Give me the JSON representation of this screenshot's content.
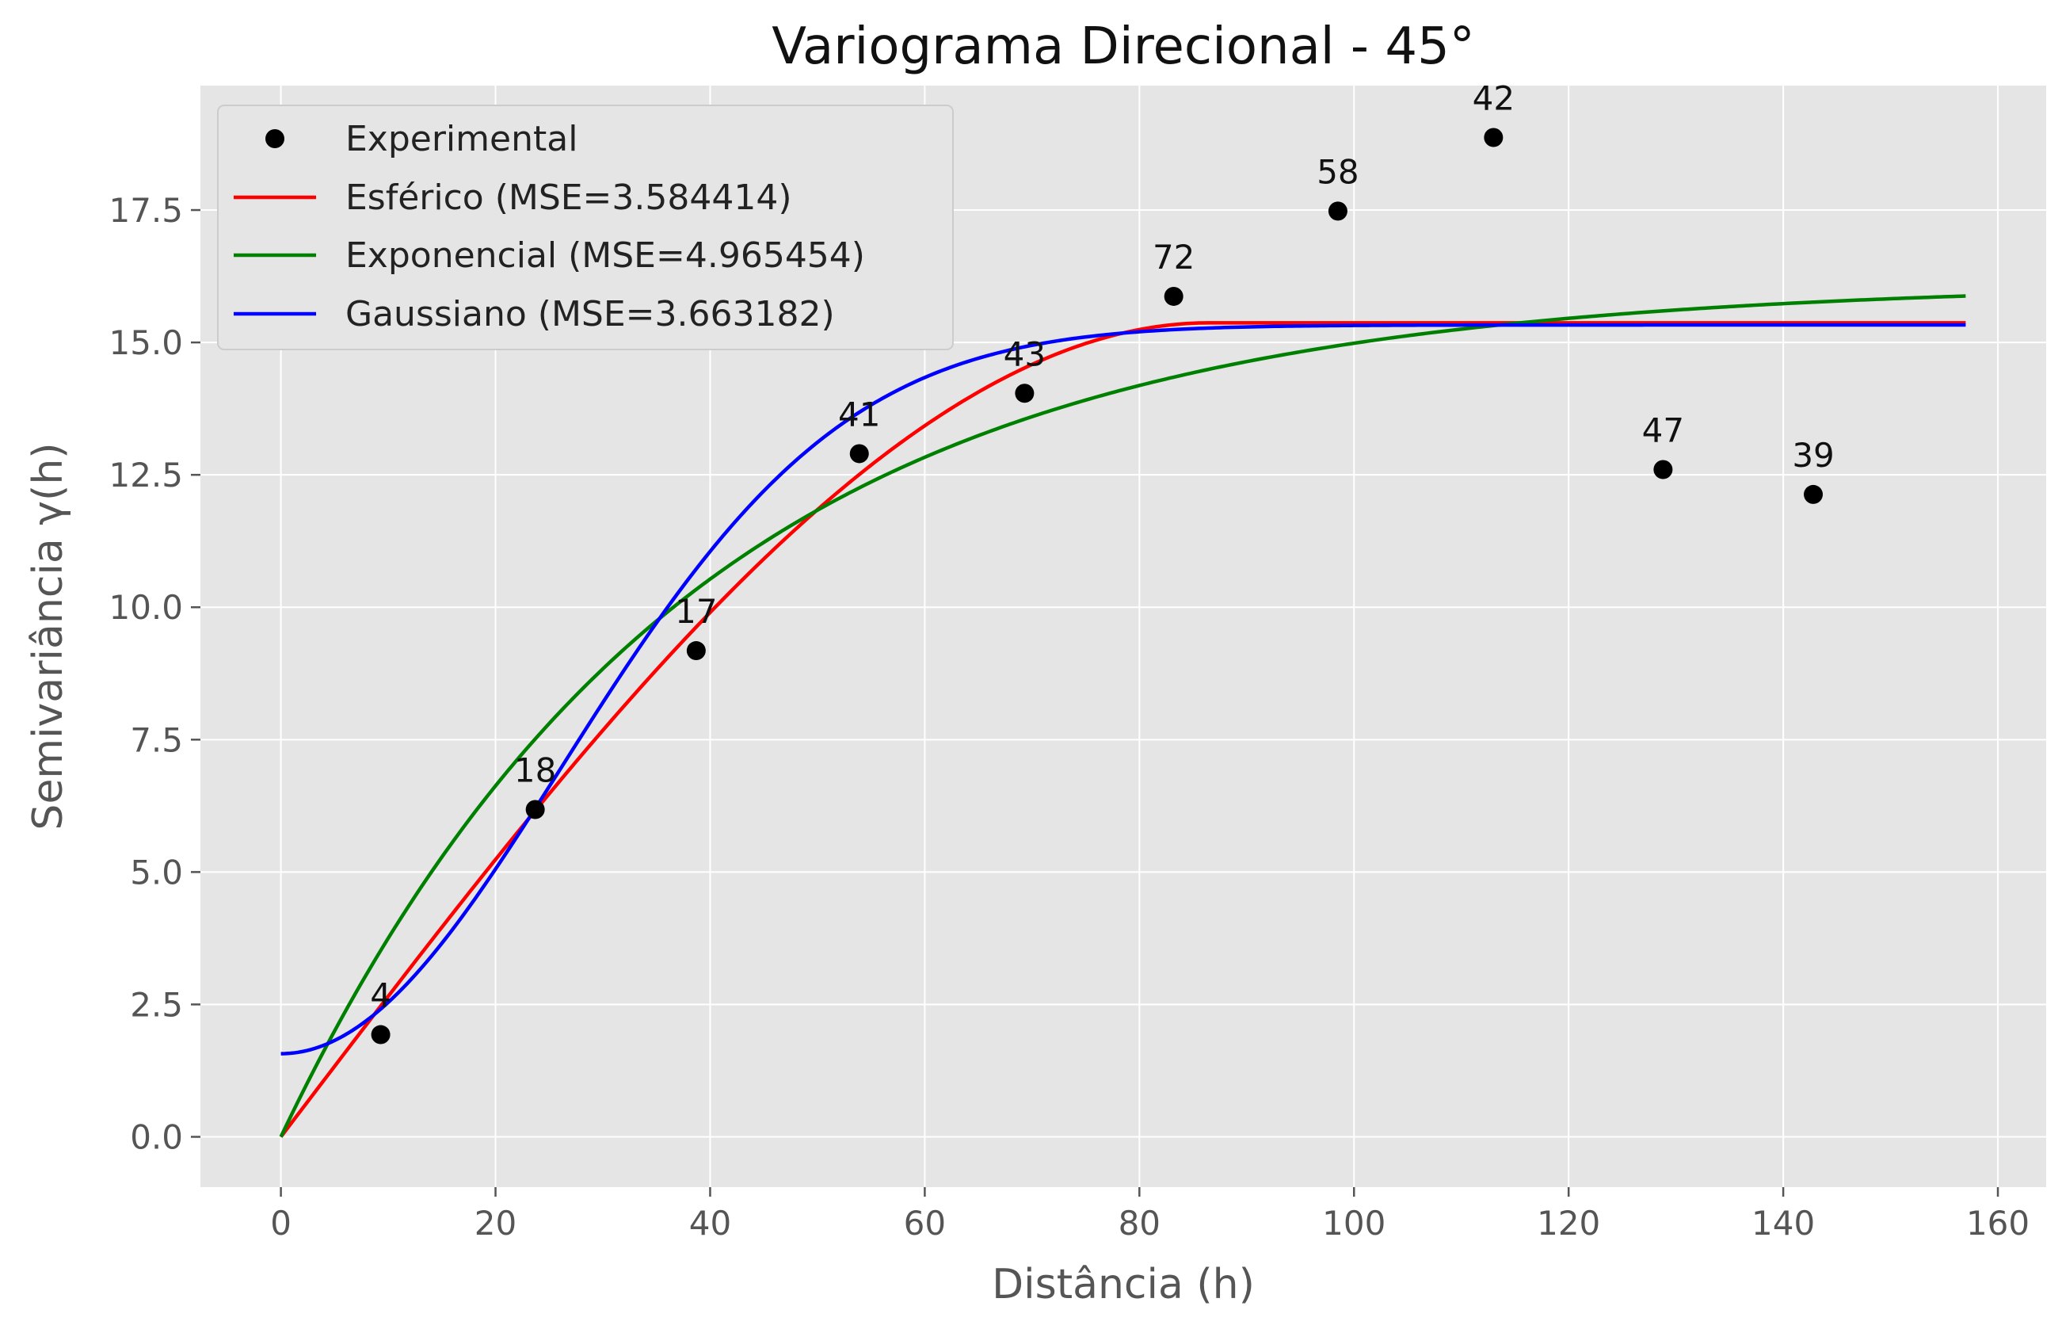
{
  "chart_data": {
    "type": "line",
    "title": "Variograma Direcional - 45°",
    "xlabel": "Distância (h)",
    "ylabel": "Semivariância γ(h)",
    "xlim": [
      -7.5,
      164.5
    ],
    "ylim": [
      -0.95,
      19.85
    ],
    "x_ticks": [
      0,
      20,
      40,
      60,
      80,
      100,
      120,
      140,
      160
    ],
    "x_tick_labels": [
      "0",
      "20",
      "40",
      "60",
      "80",
      "100",
      "120",
      "140",
      "160"
    ],
    "y_ticks": [
      0,
      2.5,
      5,
      7.5,
      10,
      12.5,
      15,
      17.5
    ],
    "y_tick_labels": [
      "0.0",
      "2.5",
      "5.0",
      "7.5",
      "10.0",
      "12.5",
      "15.0",
      "17.5"
    ],
    "grid": true,
    "legend_position": "top-left",
    "x_max_model": 157,
    "experimental": {
      "name": "Experimental",
      "color": "#000000",
      "points": [
        {
          "x": 9.3,
          "y": 1.93,
          "label": "4"
        },
        {
          "x": 23.7,
          "y": 6.18,
          "label": "18"
        },
        {
          "x": 38.7,
          "y": 9.18,
          "label": "17"
        },
        {
          "x": 53.9,
          "y": 12.9,
          "label": "41"
        },
        {
          "x": 69.3,
          "y": 14.04,
          "label": "43"
        },
        {
          "x": 83.2,
          "y": 15.87,
          "label": "72"
        },
        {
          "x": 98.5,
          "y": 17.48,
          "label": "58"
        },
        {
          "x": 113.0,
          "y": 18.87,
          "label": "42"
        },
        {
          "x": 128.8,
          "y": 12.6,
          "label": "47"
        },
        {
          "x": 142.8,
          "y": 12.13,
          "label": "39"
        }
      ]
    },
    "models": [
      {
        "name": "Esférico (MSE=3.584414)",
        "model": "spherical",
        "color": "#ff0000",
        "nugget": 0,
        "sill": 15.37,
        "range": 86.5
      },
      {
        "name": "Exponencial (MSE=4.965454)",
        "model": "exponential",
        "color": "#008000",
        "nugget": 0,
        "sill": 16.13,
        "range": 37.8
      },
      {
        "name": "Gaussiano (MSE=3.663182)",
        "model": "gaussian",
        "color": "#0000ff",
        "nugget": 1.57,
        "sill": 15.33,
        "range": 37.0
      }
    ]
  }
}
